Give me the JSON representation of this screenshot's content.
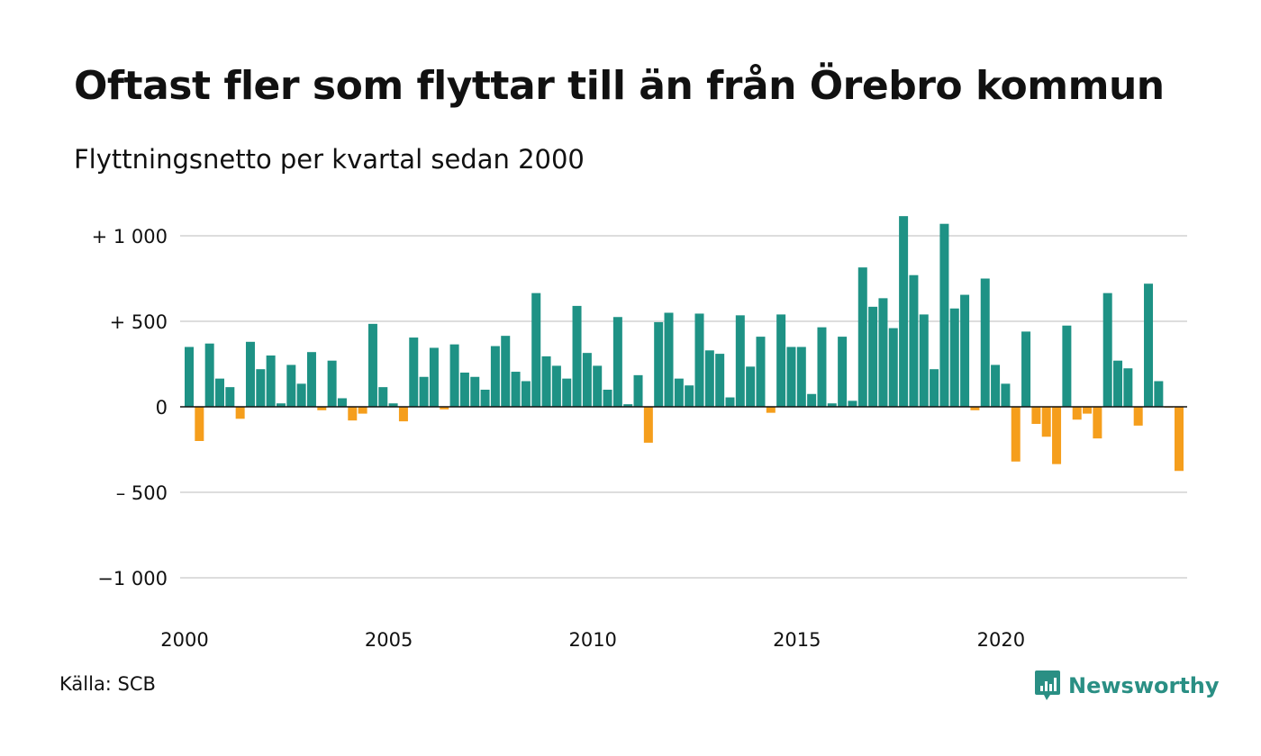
{
  "title": "Oftast fler som flyttar till än från Örebro kommun",
  "subtitle": "Flyttningsnetto per kvartal sedan 2000",
  "source": "Källa: SCB",
  "brand": {
    "name": "Newsworthy",
    "icon": "newsworthy-logo-icon"
  },
  "colors": {
    "positive": "#1e9285",
    "negative": "#f59e1c",
    "grid": "#dddddd",
    "zero_line": "#111111"
  },
  "chart_data": {
    "type": "bar",
    "title": "Oftast fler som flyttar till än från Örebro kommun",
    "subtitle": "Flyttningsnetto per kvartal sedan 2000",
    "ylim": [
      -1000,
      1000
    ],
    "grid": true,
    "y_ticks": [
      {
        "value": 1000,
        "label": "+ 1 000"
      },
      {
        "value": 500,
        "label": "+   500"
      },
      {
        "value": 0,
        "label": "0"
      },
      {
        "value": -500,
        "label": "–  500"
      },
      {
        "value": -1000,
        "label": "−1 000"
      }
    ],
    "x_ticks": [
      {
        "value": "2000",
        "label": "2000"
      },
      {
        "value": "2005",
        "label": "2005"
      },
      {
        "value": "2010",
        "label": "2010"
      },
      {
        "value": "2015",
        "label": "2015"
      },
      {
        "value": "2020",
        "label": "2020"
      }
    ],
    "start": {
      "year": 2000,
      "quarter": 1
    },
    "values": [
      350,
      -200,
      370,
      165,
      115,
      -70,
      380,
      220,
      300,
      20,
      245,
      135,
      320,
      -20,
      270,
      50,
      -80,
      -40,
      485,
      115,
      20,
      -85,
      405,
      175,
      345,
      -15,
      365,
      200,
      175,
      100,
      355,
      415,
      205,
      150,
      665,
      295,
      240,
      165,
      590,
      315,
      240,
      100,
      525,
      15,
      185,
      -210,
      495,
      550,
      165,
      125,
      545,
      330,
      310,
      55,
      535,
      235,
      410,
      -35,
      540,
      350,
      350,
      75,
      465,
      20,
      410,
      35,
      815,
      585,
      635,
      460,
      1115,
      770,
      540,
      220,
      1070,
      575,
      655,
      -20,
      750,
      245,
      135,
      -320,
      440,
      -100,
      -175,
      -335,
      475,
      -75,
      -40,
      -185,
      665,
      270,
      225,
      -110,
      720,
      150,
      -5,
      -375
    ]
  }
}
